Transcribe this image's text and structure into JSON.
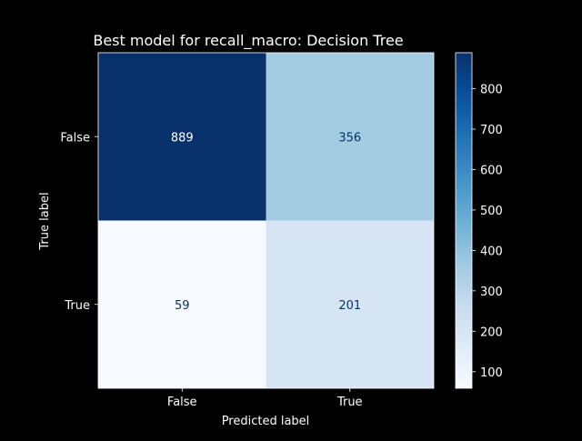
{
  "chart_data": {
    "type": "heatmap",
    "title": "Best model for recall_macro: Decision Tree",
    "xlabel": "Predicted label",
    "ylabel": "True label",
    "x_categories": [
      "False",
      "True"
    ],
    "y_categories": [
      "False",
      "True"
    ],
    "values": [
      [
        889,
        356
      ],
      [
        59,
        201
      ]
    ],
    "colormap": "Blues",
    "colorbar": {
      "min": 59,
      "max": 889,
      "ticks": [
        100,
        200,
        300,
        400,
        500,
        600,
        700,
        800
      ]
    },
    "text_colors": {
      "on_dark": "#ffffff",
      "on_light": "#08306b"
    },
    "background": "#000000",
    "foreground": "#ffffff"
  }
}
